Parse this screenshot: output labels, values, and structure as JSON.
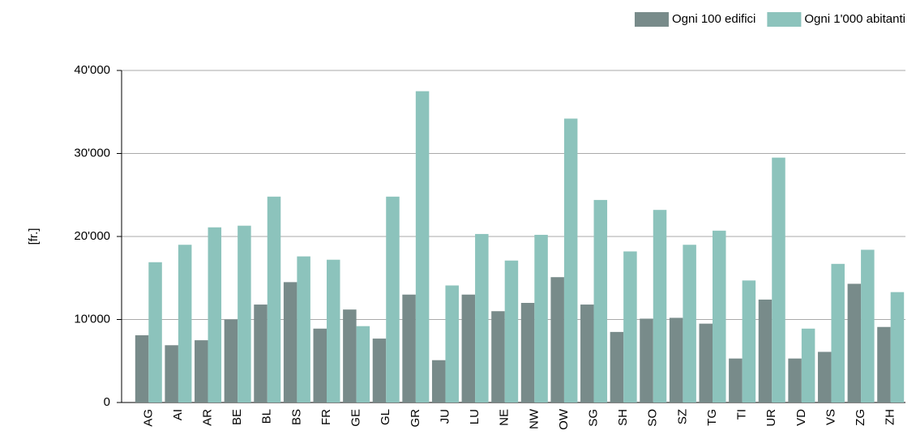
{
  "chart_data": {
    "type": "bar",
    "y_label": "[fr.]",
    "categories": [
      "AG",
      "AI",
      "AR",
      "BE",
      "BL",
      "BS",
      "FR",
      "GE",
      "GL",
      "GR",
      "JU",
      "LU",
      "NE",
      "NW",
      "OW",
      "SG",
      "SH",
      "SO",
      "SZ",
      "TG",
      "TI",
      "UR",
      "VD",
      "VS",
      "ZG",
      "ZH"
    ],
    "series": [
      {
        "name": "Ogni 100 edifici",
        "color": "#788b8a",
        "values": [
          8100,
          6900,
          7500,
          10000,
          11800,
          14500,
          8900,
          11200,
          7700,
          13000,
          5100,
          13000,
          11000,
          12000,
          15100,
          11800,
          8500,
          10100,
          10200,
          9500,
          5300,
          12400,
          5300,
          6100,
          14300,
          9100
        ]
      },
      {
        "name": "Ogni 1'000 abitanti",
        "color": "#8cc3bc",
        "values": [
          16900,
          19000,
          21100,
          21300,
          24800,
          17600,
          17200,
          9200,
          24800,
          37500,
          14100,
          20300,
          17100,
          20200,
          34200,
          24400,
          18200,
          23200,
          19000,
          20700,
          14700,
          29500,
          8900,
          16700,
          18400,
          13300
        ]
      }
    ],
    "ylim": [
      0,
      40000
    ],
    "yticks": [
      0,
      {
        "value": 10000,
        "label": "10'000"
      },
      {
        "value": 20000,
        "label": "20'000"
      },
      {
        "value": 30000,
        "label": "30'000"
      },
      {
        "value": 40000,
        "label": "40'000"
      }
    ],
    "grid": true,
    "legend": "top-right"
  }
}
